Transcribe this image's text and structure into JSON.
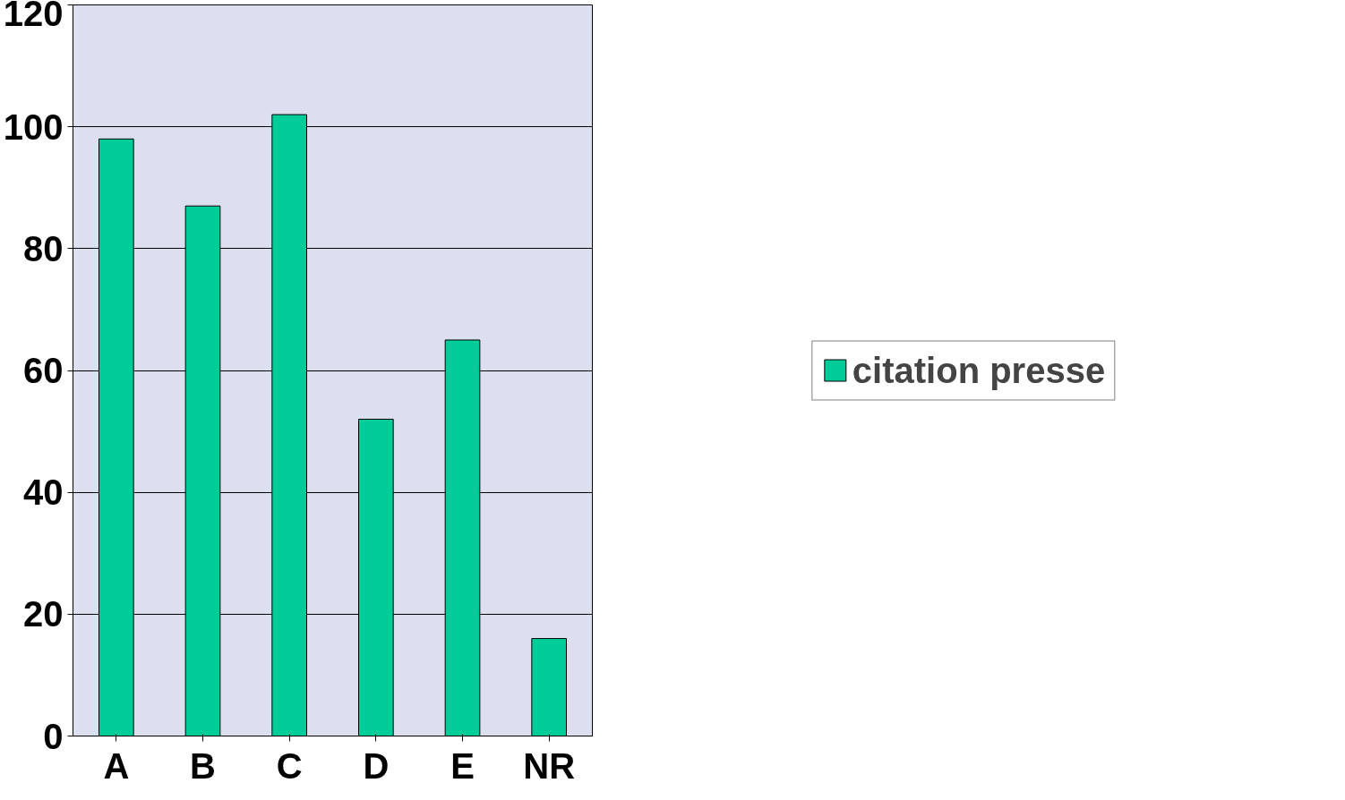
{
  "chart_data": {
    "type": "bar",
    "categories": [
      "A",
      "B",
      "C",
      "D",
      "E",
      "NR"
    ],
    "series": [
      {
        "name": "citation presse",
        "color": "#00cc99",
        "values": [
          98,
          87,
          102,
          52,
          65,
          16
        ]
      }
    ],
    "ylim": [
      0,
      120
    ],
    "yticks": [
      0,
      20,
      40,
      60,
      80,
      100,
      120
    ],
    "grid": "y",
    "legend": "right"
  }
}
